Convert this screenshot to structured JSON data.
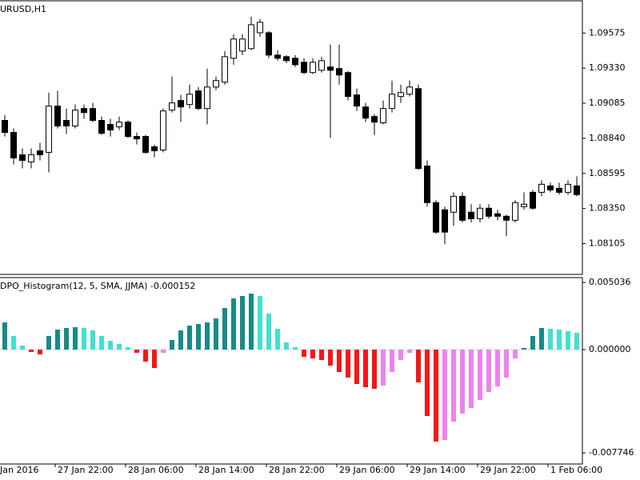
{
  "chart_data": [
    {
      "type": "candlestick",
      "title": "URUSD,H1",
      "up_color": "#ffffff",
      "down_color": "#000000",
      "edge_color": "#000000",
      "open": [
        1.08965,
        1.08881,
        1.08725,
        1.08675,
        1.08753,
        1.08742,
        1.09065,
        1.08965,
        1.08926,
        1.09048,
        1.09048,
        1.08965,
        1.08937,
        1.0892,
        1.08953,
        1.08853,
        1.08853,
        1.08781,
        1.08758,
        1.09037,
        1.09104,
        1.09076,
        1.09171,
        1.09048,
        1.09198,
        1.09232,
        1.09399,
        1.09449,
        1.09466,
        1.09577,
        1.09577,
        1.09421,
        1.0941,
        1.09399,
        1.09371,
        1.09299,
        1.09315,
        1.09338,
        1.09327,
        1.09299,
        1.09143,
        1.09059,
        1.08992,
        1.08948,
        1.09048,
        1.09132,
        1.09148,
        1.09187,
        1.08647,
        1.08391,
        1.08341,
        1.08324,
        1.08435,
        1.08324,
        1.08279,
        1.08352,
        1.08313,
        1.08296,
        1.08268,
        1.08363,
        1.08463,
        1.08463,
        1.08508,
        1.08491,
        1.08463,
        1.08508
      ],
      "high": [
        1.09003,
        1.08909,
        1.0877,
        1.0877,
        1.08809,
        1.09159,
        1.09171,
        1.09048,
        1.09076,
        1.09076,
        1.09087,
        1.08992,
        1.08976,
        1.08992,
        1.08965,
        1.08881,
        1.08864,
        1.08797,
        1.09048,
        1.09271,
        1.09143,
        1.09215,
        1.09198,
        1.09327,
        1.09271,
        1.09449,
        1.09566,
        1.09566,
        1.09689,
        1.09672,
        1.09588,
        1.09455,
        1.09421,
        1.09421,
        1.09399,
        1.09399,
        1.0941,
        1.09494,
        1.09494,
        1.0931,
        1.09187,
        1.09087,
        1.09009,
        1.09104,
        1.09243,
        1.09215,
        1.09243,
        1.09215,
        1.08686,
        1.08408,
        1.08363,
        1.08463,
        1.08463,
        1.0838,
        1.0838,
        1.0838,
        1.08341,
        1.08307,
        1.08408,
        1.08463,
        1.0848,
        1.08547,
        1.0853,
        1.0853,
        1.08547,
        1.08575
      ],
      "low": [
        1.08853,
        1.08658,
        1.0863,
        1.0863,
        1.08686,
        1.08602,
        1.08909,
        1.0887,
        1.08909,
        1.08976,
        1.08953,
        1.08864,
        1.08853,
        1.08898,
        1.08842,
        1.08797,
        1.08731,
        1.08708,
        1.08742,
        1.0902,
        1.08953,
        1.09048,
        1.09037,
        1.08937,
        1.09176,
        1.09215,
        1.09354,
        1.09421,
        1.09455,
        1.09549,
        1.09399,
        1.09382,
        1.09366,
        1.09338,
        1.09288,
        1.09288,
        1.09299,
        1.08842,
        1.09215,
        1.09104,
        1.09031,
        1.08953,
        1.08864,
        1.08937,
        1.0902,
        1.09087,
        1.09132,
        1.08619,
        1.08363,
        1.08174,
        1.08101,
        1.08229,
        1.08252,
        1.08252,
        1.08252,
        1.08279,
        1.08268,
        1.08157,
        1.08252,
        1.08341,
        1.08341,
        1.08435,
        1.08463,
        1.08447,
        1.08447,
        1.08435
      ],
      "close": [
        1.08881,
        1.08703,
        1.08686,
        1.08725,
        1.08725,
        1.09065,
        1.08926,
        1.08926,
        1.09037,
        1.0902,
        1.08965,
        1.08875,
        1.08898,
        1.08953,
        1.08853,
        1.08836,
        1.08742,
        1.08753,
        1.09031,
        1.09087,
        1.09059,
        1.09148,
        1.09048,
        1.09198,
        1.09243,
        1.0941,
        1.09533,
        1.09533,
        1.09633,
        1.0965,
        1.09421,
        1.09399,
        1.09382,
        1.09354,
        1.09299,
        1.09371,
        1.09382,
        1.09315,
        1.09282,
        1.09132,
        1.09065,
        1.08981,
        1.08953,
        1.09048,
        1.09148,
        1.09159,
        1.09198,
        1.0863,
        1.08391,
        1.08185,
        1.08185,
        1.08435,
        1.08268,
        1.08279,
        1.08352,
        1.08296,
        1.08296,
        1.08268,
        1.08391,
        1.0838,
        1.08352,
        1.08519,
        1.0848,
        1.08463,
        1.08519,
        1.08447
      ],
      "ylim": [
        1.0789,
        1.098
      ],
      "yticks": [
        1.09575,
        {
          "value": 1.0933,
          "label": "1.09330"
        },
        1.09085,
        {
          "value": 1.0884,
          "label": "1.08840"
        },
        1.08595,
        {
          "value": 1.0835,
          "label": "1.08350"
        },
        1.08105
      ]
    },
    {
      "type": "bar",
      "title": "DPO_Histogram(12, 5, SMA, JJMA) -0.000152",
      "colors": [
        "#178a8a",
        "#40e0d0",
        "#f51616",
        "#ee82ee"
      ],
      "values": [
        0.00204,
        0.00102,
        0.0003,
        -0.00018,
        -0.00036,
        0.00102,
        0.0015,
        0.00162,
        0.00168,
        0.00162,
        0.00144,
        0.00102,
        0.00066,
        0.00042,
        0.00018,
        -0.00024,
        -0.0009,
        -0.00138,
        -0.00024,
        0.00072,
        0.00144,
        0.0018,
        0.00192,
        0.00204,
        0.00234,
        0.00312,
        0.00384,
        0.00402,
        0.0042,
        0.00402,
        0.0027,
        0.00156,
        0.00054,
        0.00018,
        -0.00054,
        -0.00066,
        -0.00078,
        -0.0012,
        -0.00168,
        -0.0021,
        -0.00258,
        -0.00282,
        -0.00294,
        -0.0027,
        -0.00168,
        -0.00078,
        -0.00024,
        -0.00246,
        -0.00498,
        -0.0069,
        -0.00678,
        -0.0054,
        -0.0048,
        -0.00438,
        -0.00378,
        -0.00318,
        -0.00276,
        -0.0021,
        -0.00066,
        0.00012,
        0.00102,
        0.00162,
        0.00156,
        0.0015,
        0.00138,
        0.00126
      ],
      "ylim": [
        -0.00858,
        0.0054
      ],
      "yticks": [
        0.005036,
        {
          "value": 0,
          "label": "0.000000"
        },
        -0.007746
      ],
      "time_labels": [
        "Jan 2016",
        "27 Jan 22:00",
        "28 Jan 06:00",
        "28 Jan 14:00",
        "28 Jan 22:00",
        "29 Jan 06:00",
        "29 Jan 14:00",
        "29 Jan 22:00",
        "1 Feb 06:00"
      ]
    }
  ]
}
